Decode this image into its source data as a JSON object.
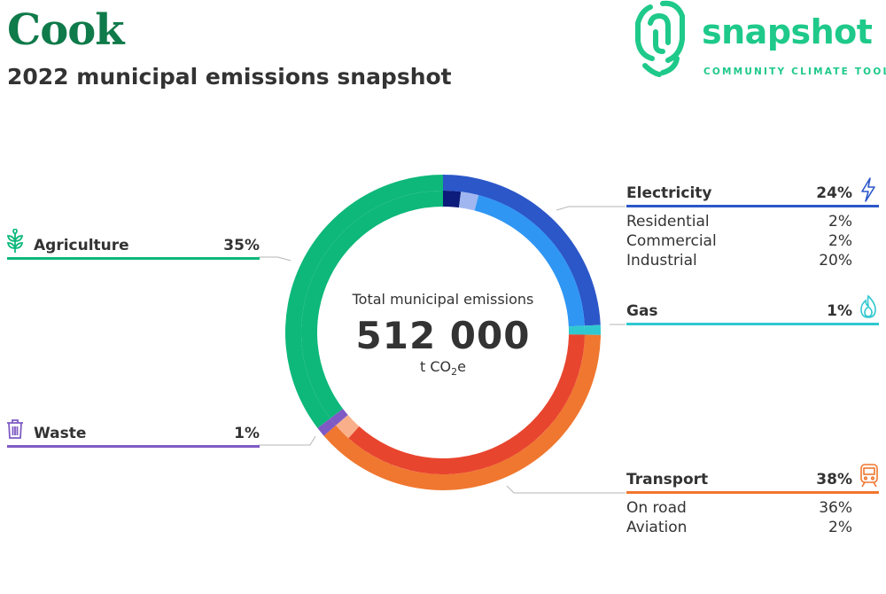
{
  "header": {
    "title": "Cook",
    "subtitle": "2022 municipal emissions snapshot"
  },
  "logo": {
    "word": "snapshot",
    "tagline": "COMMUNITY CLIMATE TOOL",
    "color": "#1ec98a"
  },
  "center": {
    "title": "Total municipal emissions",
    "value": "512 000",
    "unit_prefix": "t CO",
    "unit_sub": "2",
    "unit_suffix": "e"
  },
  "categories": {
    "agriculture": {
      "label": "Agriculture",
      "pct_label": "35%",
      "icon": "plant-icon",
      "color": "#0db87a"
    },
    "waste": {
      "label": "Waste",
      "pct_label": "1%",
      "icon": "trash-icon",
      "color": "#7f5ac4"
    },
    "electricity": {
      "label": "Electricity",
      "pct_label": "24%",
      "icon": "lightning-icon",
      "color": "#2b57c8",
      "subs": [
        {
          "label": "Residential",
          "pct_label": "2%"
        },
        {
          "label": "Commercial",
          "pct_label": "2%"
        },
        {
          "label": "Industrial",
          "pct_label": "20%"
        }
      ]
    },
    "gas": {
      "label": "Gas",
      "pct_label": "1%",
      "icon": "flame-icon",
      "color": "#30c8d0"
    },
    "transport": {
      "label": "Transport",
      "pct_label": "38%",
      "icon": "train-icon",
      "color": "#f0772f",
      "subs": [
        {
          "label": "On road",
          "pct_label": "36%"
        },
        {
          "label": "Aviation",
          "pct_label": "2%"
        }
      ]
    }
  },
  "chart_data": {
    "type": "pie",
    "donut": true,
    "title": "2022 municipal emissions snapshot",
    "total": 512000,
    "unit": "t CO2e",
    "series": [
      {
        "name": "Electricity",
        "value": 24,
        "color": "#2b57c8",
        "subs": [
          {
            "name": "Residential",
            "value": 2,
            "color": "#0d1b7a"
          },
          {
            "name": "Commercial",
            "value": 2,
            "color": "#9fb6f0"
          },
          {
            "name": "Industrial",
            "value": 20,
            "color": "#2f96f4"
          }
        ]
      },
      {
        "name": "Gas",
        "value": 1,
        "color": "#30c8d0",
        "subs": [
          {
            "name": "Gas",
            "value": 1,
            "color": "#30c8d0"
          }
        ]
      },
      {
        "name": "Transport",
        "value": 38,
        "color": "#f0772f",
        "subs": [
          {
            "name": "On road",
            "value": 36,
            "color": "#e8452e"
          },
          {
            "name": "Aviation",
            "value": 2,
            "color": "#f9b08a"
          }
        ]
      },
      {
        "name": "Waste",
        "value": 1,
        "color": "#7f5ac4",
        "subs": [
          {
            "name": "Waste",
            "value": 1,
            "color": "#7f5ac4"
          }
        ]
      },
      {
        "name": "Agriculture",
        "value": 35,
        "color": "#0db87a",
        "subs": [
          {
            "name": "Agriculture",
            "value": 35,
            "color": "#0db87a"
          }
        ]
      }
    ]
  }
}
